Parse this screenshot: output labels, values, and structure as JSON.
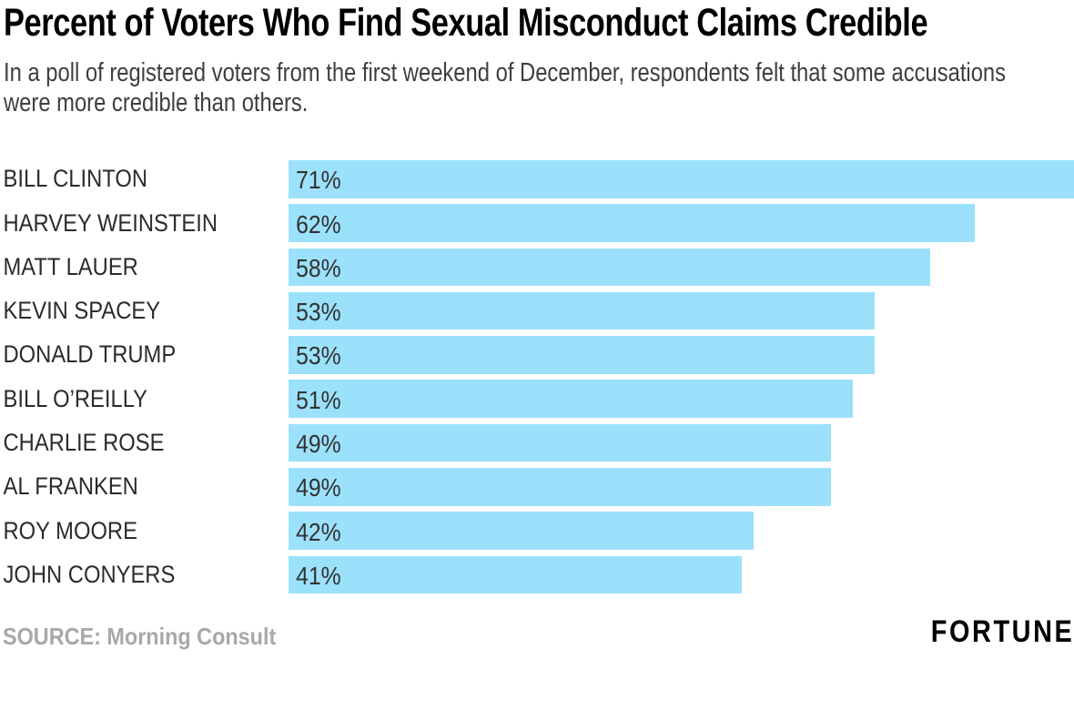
{
  "title": "Percent of Voters Who Find Sexual Misconduct Claims Credible",
  "subtitle": "In a poll of registered voters from the first weekend of December, respondents felt that some accusations were more credible than others.",
  "source": "SOURCE: Morning Consult",
  "brand": "FORTUNE",
  "colors": {
    "bar": "#9BE1FB",
    "title": "#000000",
    "subtitle": "#3E3E3E",
    "label": "#2B2B2B",
    "value": "#323232",
    "source": "#A8A8A8",
    "brand": "#000000"
  },
  "chart_data": {
    "type": "bar",
    "orientation": "horizontal",
    "title": "Percent of Voters Who Find Sexual Misconduct Claims Credible",
    "subtitle": "In a poll of registered voters from the first weekend of December, respondents felt that some accusations were more credible than others.",
    "categories": [
      "BILL CLINTON",
      "HARVEY WEINSTEIN",
      "MATT LAUER",
      "KEVIN SPACEY",
      "DONALD TRUMP",
      "BILL O’REILLY",
      "CHARLIE ROSE",
      "AL FRANKEN",
      "ROY MOORE",
      "JOHN CONYERS"
    ],
    "values": [
      71,
      62,
      58,
      53,
      53,
      51,
      49,
      49,
      42,
      41
    ],
    "value_labels": [
      "71%",
      "62%",
      "58%",
      "53%",
      "53%",
      "51%",
      "49%",
      "49%",
      "42%",
      "41%"
    ],
    "xlabel": "",
    "ylabel": "",
    "xlim": [
      0,
      71
    ],
    "grid": false,
    "legend": false,
    "bar_color": "#9BE1FB",
    "value_label_position": "inside-left",
    "source": "SOURCE: Morning Consult"
  }
}
